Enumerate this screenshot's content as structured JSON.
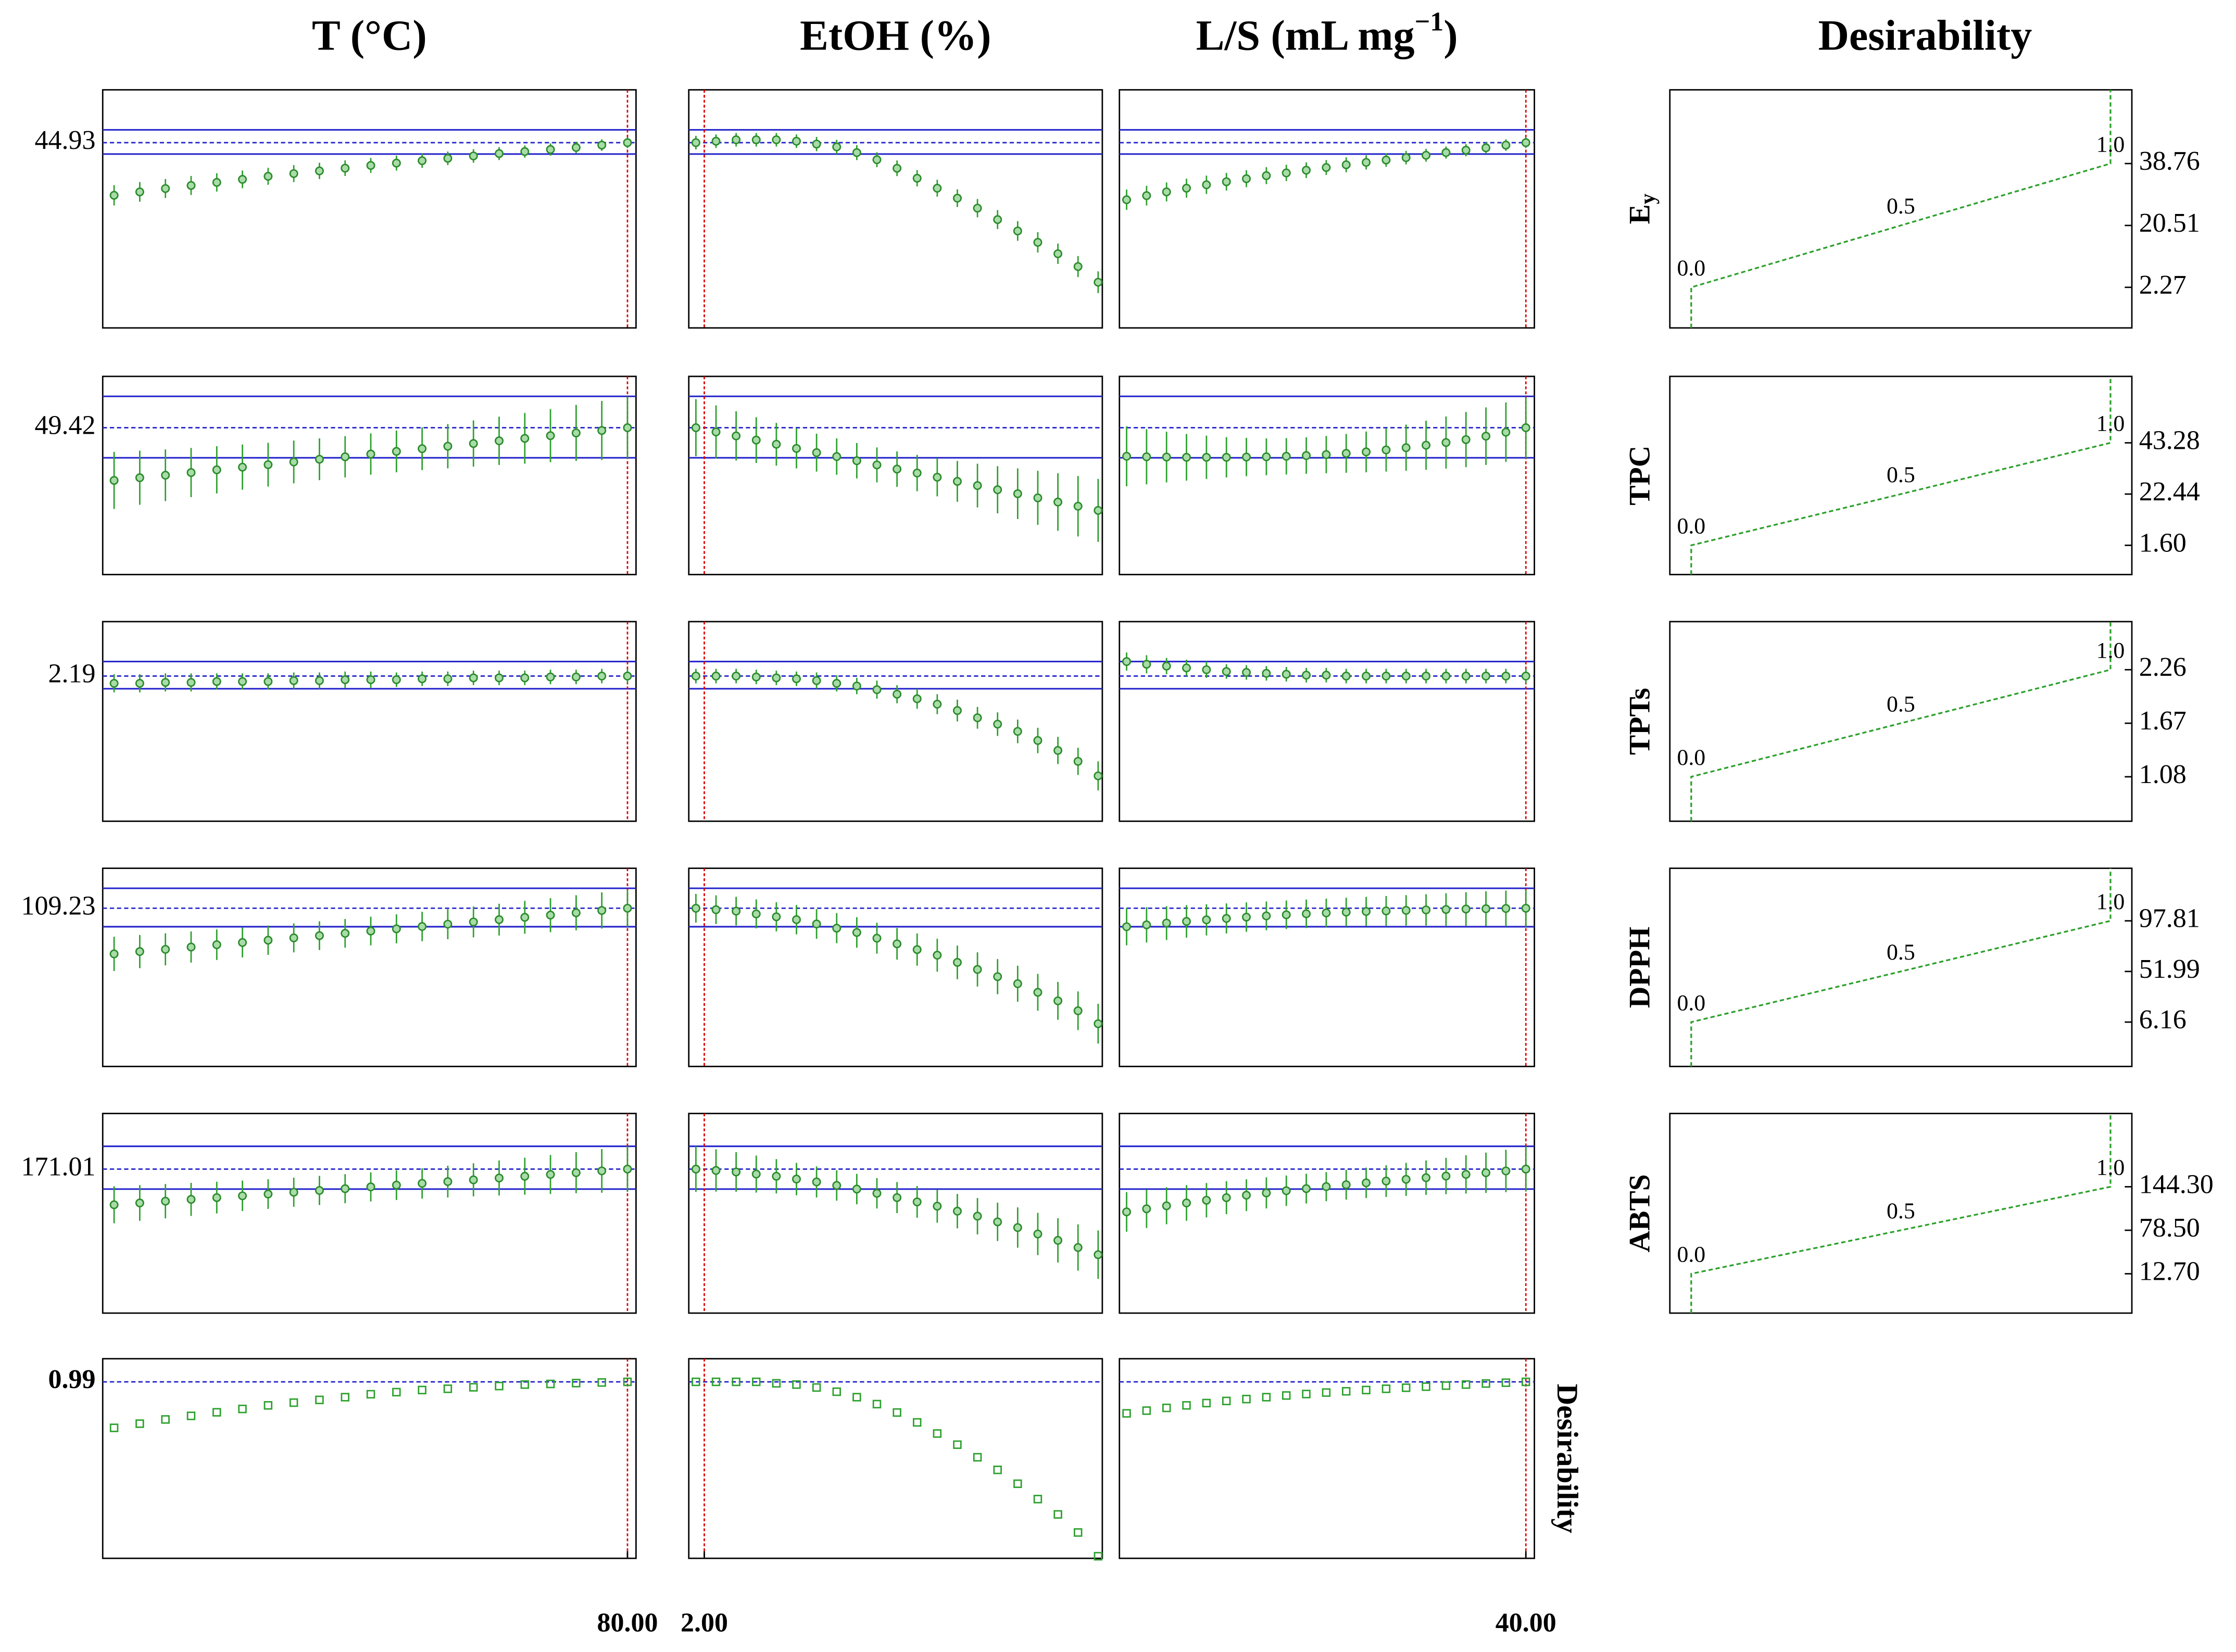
{
  "chart_data": {
    "type": "profiler",
    "columns": [
      {
        "title": "T (°C)",
        "x": [
          20,
          23,
          26,
          29,
          32,
          35,
          38,
          41,
          44,
          47,
          50,
          53,
          56,
          59,
          62,
          65,
          68,
          71,
          74,
          77,
          80
        ],
        "xlim": [
          18.67,
          81
        ],
        "xticks": [
          {
            "value": 80,
            "label": "80.00"
          }
        ],
        "current": 80
      },
      {
        "title": "EtOH (%)",
        "x": [
          0,
          4.8,
          9.6,
          14.4,
          19.2,
          24,
          28.8,
          33.6,
          38.4,
          43.2,
          48,
          52.8,
          57.6,
          62.4,
          67.2,
          72,
          76.8,
          81.6,
          86.4,
          91.2,
          96
        ],
        "xlim": [
          -1.7,
          97
        ],
        "xticks": [
          {
            "value": 2,
            "label": "2.00"
          }
        ],
        "current": 2
      },
      {
        "title": "L/S (mL mg",
        "title_superscript": "−1",
        "title_end": ")",
        "x": [
          10,
          11.5,
          13,
          14.5,
          16,
          17.5,
          19,
          20.5,
          22,
          23.5,
          25,
          26.5,
          28,
          29.5,
          31,
          32.5,
          34,
          35.5,
          37,
          38.5,
          40
        ],
        "xlim": [
          9.46,
          40.64
        ],
        "xticks": [
          {
            "value": 40,
            "label": "40.00"
          }
        ],
        "current": 40
      }
    ],
    "desirability_title": "Desirability",
    "desirability_xlim": [
      -0.051,
      1.051
    ],
    "desirability_ticks": [
      {
        "value": 0,
        "label": "0.0"
      },
      {
        "value": 0.5,
        "label": "0.5"
      },
      {
        "value": 1,
        "label": "1.0"
      }
    ],
    "rows": [
      {
        "name": "E",
        "subscript": "y",
        "ylim": [
          -9.7,
          60.5
        ],
        "current": 44.93,
        "ci": [
          41.57,
          48.71
        ],
        "marker": "circle",
        "yticks_right": [
          2.27,
          20.51,
          38.76
        ],
        "curves": [
          {
            "values": [
              29.4,
              30.4,
              31.4,
              32.3,
              33.2,
              34.1,
              35.0,
              35.8,
              36.6,
              37.4,
              38.2,
              38.9,
              39.6,
              40.3,
              41.0,
              41.7,
              42.3,
              42.9,
              43.5,
              44.2,
              44.93
            ],
            "errors": [
              3.0,
              2.9,
              2.8,
              2.8,
              2.7,
              2.6,
              2.5,
              2.5,
              2.4,
              2.3,
              2.2,
              2.2,
              2.1,
              2.0,
              2.0,
              1.9,
              1.8,
              1.8,
              1.7,
              1.7,
              1.6
            ]
          },
          {
            "values": [
              44.93,
              45.35,
              45.77,
              45.77,
              45.77,
              45.35,
              44.51,
              43.67,
              41.99,
              39.89,
              37.37,
              34.43,
              31.49,
              28.55,
              25.61,
              22.25,
              18.89,
              15.53,
              12.17,
              8.39,
              3.77
            ],
            "errors": [
              2.0,
              2.0,
              2.0,
              2.0,
              2.0,
              2.0,
              2.1,
              2.1,
              2.2,
              2.2,
              2.3,
              2.4,
              2.5,
              2.6,
              2.7,
              2.8,
              2.9,
              3.0,
              3.0,
              3.1,
              3.2
            ]
          },
          {
            "values": [
              28.1,
              29.3,
              30.4,
              31.5,
              32.5,
              33.4,
              34.3,
              35.2,
              36.0,
              36.8,
              37.6,
              38.4,
              39.1,
              39.8,
              40.5,
              41.2,
              42.0,
              42.7,
              43.4,
              44.2,
              44.93
            ],
            "errors": [
              3.0,
              2.9,
              2.8,
              2.8,
              2.7,
              2.6,
              2.5,
              2.5,
              2.4,
              2.3,
              2.2,
              2.2,
              2.1,
              2.0,
              2.0,
              1.9,
              1.8,
              1.8,
              1.7,
              1.7,
              1.6
            ]
          }
        ]
      },
      {
        "name": "TPC",
        "ylim": [
          -10.3,
          70.3
        ],
        "current": 49.42,
        "ci": [
          37.2,
          62.2
        ],
        "marker": "circle",
        "yticks_right": [
          {
            "value": 1.6,
            "label": "1.60"
          },
          22.44,
          43.28
        ],
        "curves": [
          {
            "values": [
              28.0,
              29.1,
              30.1,
              31.2,
              32.3,
              33.4,
              34.4,
              35.5,
              36.6,
              37.6,
              38.7,
              39.8,
              40.9,
              41.9,
              43.0,
              44.1,
              45.1,
              46.2,
              47.3,
              48.3,
              49.42
            ],
            "errors": [
              11.6,
              11.0,
              10.5,
              10.0,
              9.6,
              9.2,
              8.9,
              8.7,
              8.5,
              8.4,
              8.4,
              8.5,
              8.7,
              9.0,
              9.4,
              9.8,
              10.3,
              10.8,
              11.4,
              12.0,
              12.6
            ]
          },
          {
            "values": [
              49.42,
              47.7,
              46.1,
              44.4,
              42.7,
              41.0,
              39.3,
              37.7,
              36.0,
              34.3,
              32.6,
              31.0,
              29.3,
              27.6,
              25.9,
              24.2,
              22.6,
              20.9,
              19.2,
              17.5,
              15.8
            ],
            "errors": [
              11.6,
              10.8,
              10.0,
              9.3,
              8.7,
              8.1,
              7.7,
              7.4,
              7.2,
              7.1,
              7.2,
              7.4,
              7.8,
              8.3,
              8.9,
              9.6,
              10.3,
              11.0,
              11.7,
              12.3,
              12.8
            ]
          },
          {
            "values": [
              37.8,
              37.6,
              37.5,
              37.4,
              37.4,
              37.4,
              37.5,
              37.6,
              37.8,
              38.1,
              38.5,
              39.0,
              39.6,
              40.4,
              41.3,
              42.3,
              43.4,
              44.6,
              46.0,
              47.6,
              49.42
            ],
            "errors": [
              12.2,
              11.2,
              10.3,
              9.5,
              8.8,
              8.2,
              7.8,
              7.5,
              7.4,
              7.4,
              7.6,
              7.9,
              8.3,
              8.8,
              9.4,
              10.0,
              10.6,
              11.2,
              11.7,
              12.1,
              12.4
            ]
          }
        ]
      },
      {
        "name": "TPTs",
        "ylim": [
          0.59,
          2.79
        ],
        "current": 2.19,
        "ci": [
          2.05,
          2.35
        ],
        "marker": "circle",
        "yticks_right": [
          1.08,
          1.67,
          2.26
        ],
        "curves": [
          {
            "values": [
              2.11,
              2.11,
              2.12,
              2.12,
              2.13,
              2.13,
              2.13,
              2.14,
              2.14,
              2.15,
              2.15,
              2.15,
              2.16,
              2.16,
              2.17,
              2.17,
              2.17,
              2.18,
              2.18,
              2.19,
              2.19
            ],
            "errors": [
              0.1,
              0.1,
              0.1,
              0.1,
              0.09,
              0.09,
              0.09,
              0.09,
              0.09,
              0.09,
              0.09,
              0.08,
              0.08,
              0.08,
              0.08,
              0.08,
              0.08,
              0.08,
              0.08,
              0.08,
              0.08
            ]
          },
          {
            "values": [
              2.19,
              2.19,
              2.19,
              2.18,
              2.17,
              2.16,
              2.14,
              2.11,
              2.08,
              2.04,
              1.99,
              1.94,
              1.88,
              1.81,
              1.73,
              1.66,
              1.58,
              1.48,
              1.37,
              1.25,
              1.09
            ],
            "errors": [
              0.08,
              0.08,
              0.08,
              0.08,
              0.08,
              0.08,
              0.09,
              0.09,
              0.09,
              0.1,
              0.1,
              0.11,
              0.11,
              0.12,
              0.12,
              0.13,
              0.13,
              0.14,
              0.15,
              0.15,
              0.16
            ]
          },
          {
            "values": [
              2.35,
              2.32,
              2.3,
              2.28,
              2.26,
              2.24,
              2.23,
              2.22,
              2.21,
              2.2,
              2.2,
              2.19,
              2.19,
              2.19,
              2.19,
              2.19,
              2.19,
              2.19,
              2.19,
              2.19,
              2.19
            ],
            "errors": [
              0.1,
              0.1,
              0.09,
              0.09,
              0.09,
              0.08,
              0.08,
              0.08,
              0.08,
              0.08,
              0.08,
              0.08,
              0.08,
              0.08,
              0.08,
              0.08,
              0.08,
              0.08,
              0.08,
              0.08,
              0.08
            ]
          }
        ]
      },
      {
        "name": "DPPH",
        "ylim": [
          -34,
          145.4
        ],
        "current": 109.23,
        "ci": [
          92.5,
          127.3
        ],
        "marker": "circle",
        "yticks_right": [
          6.16,
          51.99,
          97.81
        ],
        "curves": [
          {
            "values": [
              67.9,
              70.0,
              72.0,
              74.1,
              76.2,
              78.2,
              80.3,
              82.4,
              84.4,
              86.5,
              88.6,
              90.6,
              92.7,
              94.8,
              96.8,
              98.9,
              101.0,
              103.0,
              105.1,
              107.2,
              109.23
            ],
            "errors": [
              15.5,
              15.0,
              14.5,
              14.1,
              13.8,
              13.5,
              13.3,
              13.1,
              13.0,
              13.0,
              13.0,
              13.1,
              13.3,
              13.6,
              14.0,
              14.4,
              14.9,
              15.4,
              15.9,
              16.4,
              16.8
            ]
          },
          {
            "values": [
              109.2,
              107.9,
              106.6,
              104.1,
              101.5,
              98.9,
              95.0,
              91.2,
              87.3,
              82.1,
              77.0,
              71.8,
              66.7,
              60.2,
              53.8,
              47.3,
              40.9,
              33.1,
              25.4,
              16.4,
              4.7
            ],
            "errors": [
              13.0,
              13.0,
              13.0,
              13.1,
              13.2,
              13.3,
              13.4,
              13.6,
              13.8,
              14.0,
              14.3,
              14.6,
              14.9,
              15.2,
              15.5,
              15.9,
              16.3,
              16.7,
              17.1,
              17.5,
              18.0
            ]
          },
          {
            "values": [
              92.5,
              94.2,
              95.8,
              97.3,
              98.7,
              100.0,
              101.2,
              102.3,
              103.3,
              104.2,
              105.0,
              105.7,
              106.3,
              106.8,
              107.3,
              107.7,
              108.1,
              108.5,
              108.8,
              109.0,
              109.23
            ],
            "errors": [
              16.8,
              16.0,
              15.3,
              14.7,
              14.1,
              13.6,
              13.3,
              13.0,
              12.9,
              12.9,
              12.9,
              13.0,
              13.2,
              13.5,
              13.8,
              14.2,
              14.7,
              15.2,
              15.7,
              16.2,
              16.8
            ]
          }
        ]
      },
      {
        "name": "ABTS",
        "ylim": [
          -46.8,
          255.1
        ],
        "current": 171.01,
        "ci": [
          140.8,
          205.5
        ],
        "marker": "circle",
        "yticks_right": [
          {
            "value": 12.7,
            "label": "12.70"
          },
          {
            "value": 78.5,
            "label": "78.50"
          },
          {
            "value": 144.3,
            "label": "144.30"
          }
        ],
        "curves": [
          {
            "values": [
              117.1,
              119.8,
              122.5,
              125.2,
              127.9,
              130.6,
              133.3,
              136.0,
              138.7,
              141.4,
              144.1,
              146.8,
              149.4,
              152.1,
              154.8,
              157.5,
              160.2,
              162.9,
              165.6,
              168.3,
              171.01
            ],
            "errors": [
              28,
              27,
              26,
              25,
              24,
              23,
              22.5,
              22,
              22,
              22,
              22,
              22.5,
              23,
              24,
              25,
              26.5,
              28,
              29.5,
              31,
              33,
              34.5
            ]
          },
          {
            "values": [
              171.0,
              168.9,
              166.7,
              163.5,
              160.2,
              155.9,
              151.6,
              146.3,
              140.8,
              134.4,
              127.9,
              121.4,
              114.9,
              107.4,
              99.8,
              91.2,
              82.6,
              72.9,
              63.2,
              52.4,
              41.6
            ],
            "errors": [
              34.5,
              32,
              30,
              28,
              26,
              24.5,
              23.5,
              23,
              23,
              23,
              23.5,
              24,
              25,
              26,
              27.5,
              29,
              30.5,
              32,
              33.5,
              35,
              36.7
            ]
          },
          {
            "values": [
              106.3,
              111.0,
              115.5,
              119.8,
              123.9,
              127.8,
              131.5,
              135.0,
              138.3,
              141.5,
              144.5,
              147.4,
              150.2,
              152.9,
              155.5,
              158.0,
              160.5,
              163.0,
              165.5,
              168.2,
              171.01
            ],
            "errors": [
              30,
              29,
              28,
              27,
              26,
              25,
              24,
              23.5,
              23,
              22.5,
              22,
              22.5,
              23,
              24,
              25,
              26,
              27.5,
              29,
              30.5,
              32,
              34
            ]
          }
        ]
      },
      {
        "name": "Desirability",
        "ylim": [
          0.15,
          1.1
        ],
        "current": 0.99,
        "marker": "square",
        "curves": [
          {
            "values": [
              0.771,
              0.791,
              0.811,
              0.828,
              0.845,
              0.861,
              0.878,
              0.891,
              0.904,
              0.917,
              0.931,
              0.941,
              0.951,
              0.957,
              0.964,
              0.97,
              0.977,
              0.98,
              0.984,
              0.987,
              0.99
            ]
          },
          {
            "values": [
              0.99,
              0.99,
              0.99,
              0.99,
              0.983,
              0.977,
              0.963,
              0.943,
              0.917,
              0.884,
              0.844,
              0.797,
              0.744,
              0.691,
              0.631,
              0.571,
              0.505,
              0.432,
              0.359,
              0.273,
              0.16
            ]
          },
          {
            "values": [
              0.84,
              0.853,
              0.866,
              0.878,
              0.889,
              0.899,
              0.908,
              0.917,
              0.925,
              0.932,
              0.939,
              0.945,
              0.951,
              0.957,
              0.962,
              0.967,
              0.972,
              0.977,
              0.982,
              0.986,
              0.99
            ]
          }
        ]
      }
    ]
  }
}
